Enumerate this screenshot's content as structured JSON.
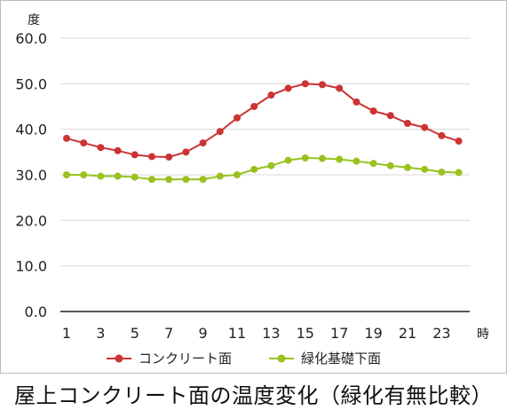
{
  "caption": "屋上コンクリート面の温度変化（緑化有無比較）",
  "chart_data": {
    "type": "line",
    "ylabel": "度",
    "xlabel": "時",
    "ylim": [
      0,
      60
    ],
    "yticks": [
      "0.0",
      "10.0",
      "20.0",
      "30.0",
      "40.0",
      "50.0",
      "60.0"
    ],
    "x": [
      1,
      2,
      3,
      4,
      5,
      6,
      7,
      8,
      9,
      10,
      11,
      12,
      13,
      14,
      15,
      16,
      17,
      18,
      19,
      20,
      21,
      22,
      23,
      24
    ],
    "xticks": [
      "1",
      "3",
      "5",
      "7",
      "9",
      "11",
      "13",
      "15",
      "17",
      "19",
      "21",
      "23"
    ],
    "grid": "horizontal",
    "legend": "bottom",
    "series": [
      {
        "name": "コンクリート面",
        "color": "#cc3333",
        "values": [
          38.0,
          37.0,
          36.0,
          35.3,
          34.4,
          34.0,
          33.9,
          35.0,
          37.0,
          39.5,
          42.5,
          45.0,
          47.5,
          49.0,
          50.0,
          49.8,
          49.0,
          46.0,
          44.0,
          43.0,
          41.3,
          40.4,
          38.6,
          37.4
        ]
      },
      {
        "name": "緑化基礎下面",
        "color": "#99c21f",
        "values": [
          30.0,
          30.0,
          29.7,
          29.7,
          29.5,
          29.0,
          29.0,
          29.0,
          29.0,
          29.7,
          30.0,
          31.2,
          32.0,
          33.2,
          33.7,
          33.6,
          33.4,
          33.0,
          32.5,
          32.0,
          31.6,
          31.2,
          30.6,
          30.5
        ]
      }
    ]
  }
}
